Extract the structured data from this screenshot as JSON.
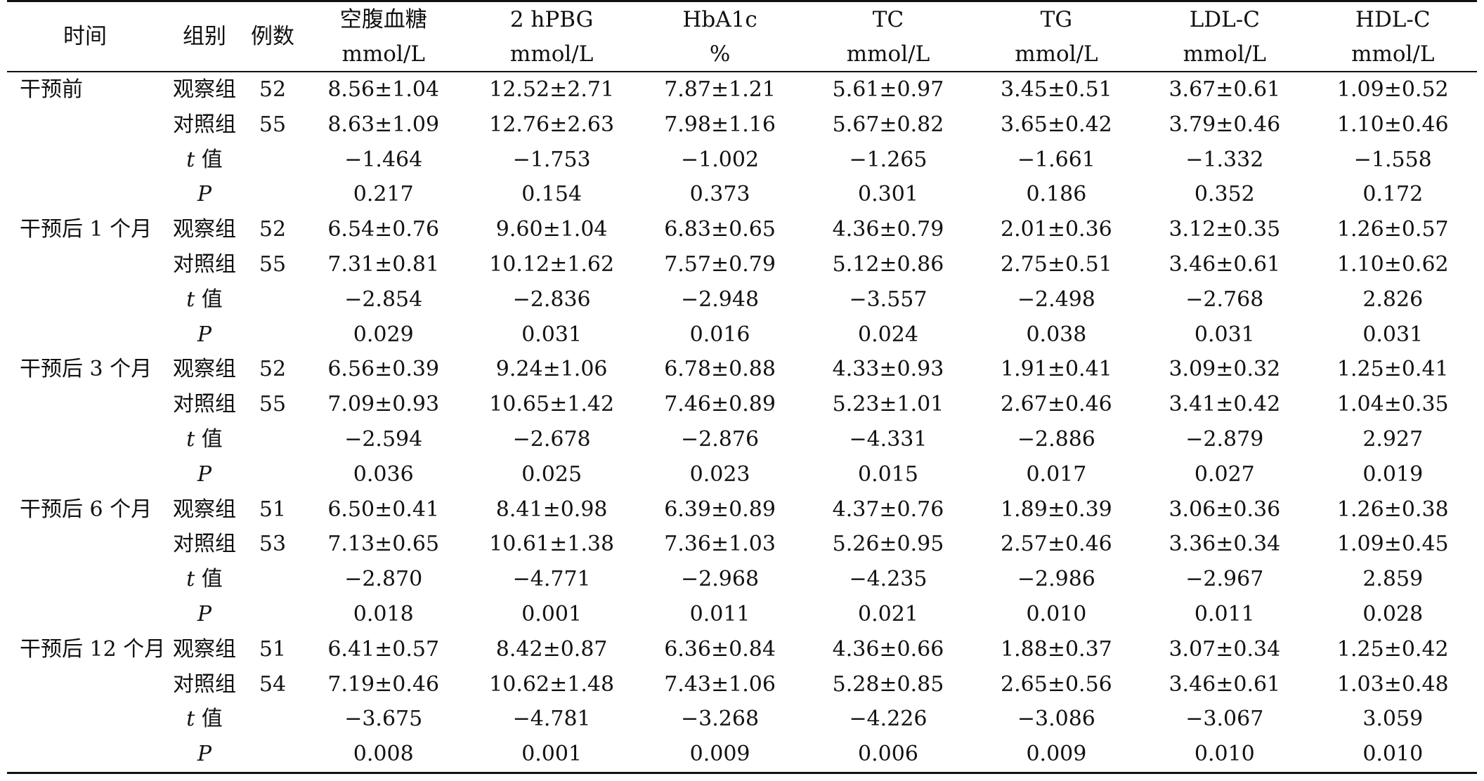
{
  "table": {
    "headers": {
      "time": "时间",
      "group": "组别",
      "n": "例数",
      "measures": [
        {
          "name": "空腹血糖",
          "unit": "mmol/L"
        },
        {
          "name": "2 hPBG",
          "unit": "mmol/L"
        },
        {
          "name": "HbA1c",
          "unit": "%"
        },
        {
          "name": "TC",
          "unit": "mmol/L"
        },
        {
          "name": "TG",
          "unit": "mmol/L"
        },
        {
          "name": "LDL-C",
          "unit": "mmol/L"
        },
        {
          "name": "HDL-C",
          "unit": "mmol/L"
        }
      ]
    },
    "sections": [
      {
        "time": "干预前",
        "rows": [
          {
            "group": "观察组",
            "n": "52",
            "values": [
              "8.56±1.04",
              "12.52±2.71",
              "7.87±1.21",
              "5.61±0.97",
              "3.45±0.51",
              "3.67±0.61",
              "1.09±0.52"
            ]
          },
          {
            "group": "对照组",
            "n": "55",
            "values": [
              "8.63±1.09",
              "12.76±2.63",
              "7.98±1.16",
              "5.67±0.82",
              "3.65±0.42",
              "3.79±0.46",
              "1.10±0.46"
            ]
          },
          {
            "stat_symbol": "t",
            "stat_suffix": " 值",
            "n": "",
            "values": [
              "−1.464",
              "−1.753",
              "−1.002",
              "−1.265",
              "−1.661",
              "−1.332",
              "−1.558"
            ]
          },
          {
            "stat_symbol": "P",
            "stat_suffix": "",
            "n": "",
            "values": [
              "0.217",
              "0.154",
              "0.373",
              "0.301",
              "0.186",
              "0.352",
              "0.172"
            ]
          }
        ]
      },
      {
        "time": "干预后 1 个月",
        "rows": [
          {
            "group": "观察组",
            "n": "52",
            "values": [
              "6.54±0.76",
              "9.60±1.04",
              "6.83±0.65",
              "4.36±0.79",
              "2.01±0.36",
              "3.12±0.35",
              "1.26±0.57"
            ]
          },
          {
            "group": "对照组",
            "n": "55",
            "values": [
              "7.31±0.81",
              "10.12±1.62",
              "7.57±0.79",
              "5.12±0.86",
              "2.75±0.51",
              "3.46±0.61",
              "1.10±0.62"
            ]
          },
          {
            "stat_symbol": "t",
            "stat_suffix": " 值",
            "n": "",
            "values": [
              "−2.854",
              "−2.836",
              "−2.948",
              "−3.557",
              "−2.498",
              "−2.768",
              "2.826"
            ]
          },
          {
            "stat_symbol": "P",
            "stat_suffix": "",
            "n": "",
            "values": [
              "0.029",
              "0.031",
              "0.016",
              "0.024",
              "0.038",
              "0.031",
              "0.031"
            ]
          }
        ]
      },
      {
        "time": "干预后 3 个月",
        "rows": [
          {
            "group": "观察组",
            "n": "52",
            "values": [
              "6.56±0.39",
              "9.24±1.06",
              "6.78±0.88",
              "4.33±0.93",
              "1.91±0.41",
              "3.09±0.32",
              "1.25±0.41"
            ]
          },
          {
            "group": "对照组",
            "n": "55",
            "values": [
              "7.09±0.93",
              "10.65±1.42",
              "7.46±0.89",
              "5.23±1.01",
              "2.67±0.46",
              "3.41±0.42",
              "1.04±0.35"
            ]
          },
          {
            "stat_symbol": "t",
            "stat_suffix": " 值",
            "n": "",
            "values": [
              "−2.594",
              "−2.678",
              "−2.876",
              "−4.331",
              "−2.886",
              "−2.879",
              "2.927"
            ]
          },
          {
            "stat_symbol": "P",
            "stat_suffix": "",
            "n": "",
            "values": [
              "0.036",
              "0.025",
              "0.023",
              "0.015",
              "0.017",
              "0.027",
              "0.019"
            ]
          }
        ]
      },
      {
        "time": "干预后 6 个月",
        "rows": [
          {
            "group": "观察组",
            "n": "51",
            "values": [
              "6.50±0.41",
              "8.41±0.98",
              "6.39±0.89",
              "4.37±0.76",
              "1.89±0.39",
              "3.06±0.36",
              "1.26±0.38"
            ]
          },
          {
            "group": "对照组",
            "n": "53",
            "values": [
              "7.13±0.65",
              "10.61±1.38",
              "7.36±1.03",
              "5.26±0.95",
              "2.57±0.46",
              "3.36±0.34",
              "1.09±0.45"
            ]
          },
          {
            "stat_symbol": "t",
            "stat_suffix": " 值",
            "n": "",
            "values": [
              "−2.870",
              "−4.771",
              "−2.968",
              "−4.235",
              "−2.986",
              "−2.967",
              "2.859"
            ]
          },
          {
            "stat_symbol": "P",
            "stat_suffix": "",
            "n": "",
            "values": [
              "0.018",
              "0.001",
              "0.011",
              "0.021",
              "0.010",
              "0.011",
              "0.028"
            ]
          }
        ]
      },
      {
        "time": "干预后 12 个月",
        "rows": [
          {
            "group": "观察组",
            "n": "51",
            "values": [
              "6.41±0.57",
              "8.42±0.87",
              "6.36±0.84",
              "4.36±0.66",
              "1.88±0.37",
              "3.07±0.34",
              "1.25±0.42"
            ]
          },
          {
            "group": "对照组",
            "n": "54",
            "values": [
              "7.19±0.46",
              "10.62±1.48",
              "7.43±1.06",
              "5.28±0.85",
              "2.65±0.56",
              "3.46±0.61",
              "1.03±0.48"
            ]
          },
          {
            "stat_symbol": "t",
            "stat_suffix": " 值",
            "n": "",
            "values": [
              "−3.675",
              "−4.781",
              "−3.268",
              "−4.226",
              "−3.086",
              "−3.067",
              "3.059"
            ]
          },
          {
            "stat_symbol": "P",
            "stat_suffix": "",
            "n": "",
            "values": [
              "0.008",
              "0.001",
              "0.009",
              "0.006",
              "0.009",
              "0.010",
              "0.010"
            ]
          }
        ]
      }
    ]
  }
}
